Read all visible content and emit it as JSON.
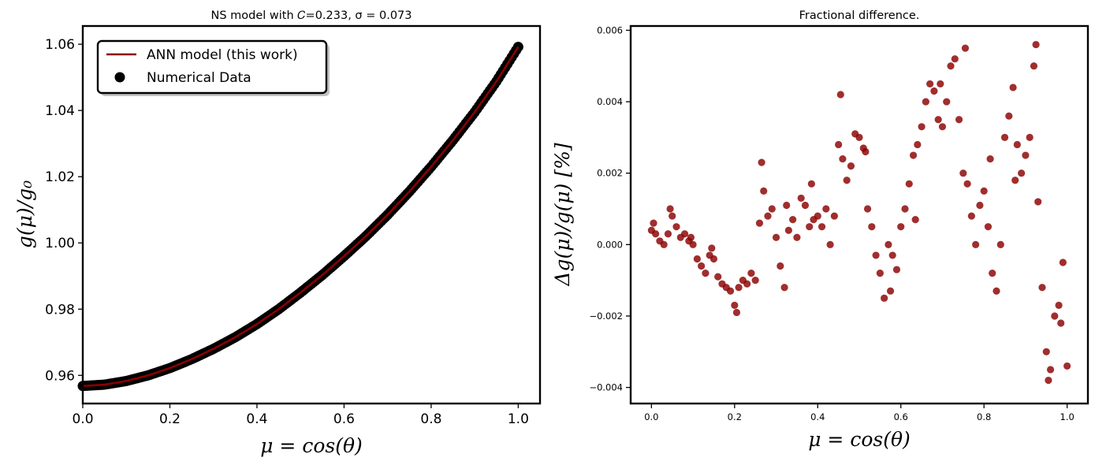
{
  "chart_data": [
    {
      "type": "line",
      "title": "NS model with 𝐶=0.233, σ = 0.073",
      "xlabel": "μ = cos(θ)",
      "ylabel": "g(μ)/g₀",
      "xlim": [
        0.0,
        1.05
      ],
      "ylim": [
        0.9515,
        1.0655
      ],
      "xticks": [
        "0.0",
        "0.2",
        "0.4",
        "0.6",
        "0.8",
        "1.0"
      ],
      "yticks": [
        "0.96",
        "0.98",
        "1.00",
        "1.02",
        "1.04",
        "1.06"
      ],
      "grid": false,
      "legend_position": "upper-left",
      "series": [
        {
          "name": "ANN model (this work)",
          "kind": "line",
          "color": "#8b0000",
          "x": [
            0.0,
            0.05,
            0.1,
            0.15,
            0.2,
            0.25,
            0.3,
            0.35,
            0.4,
            0.45,
            0.5,
            0.55,
            0.6,
            0.65,
            0.7,
            0.75,
            0.8,
            0.85,
            0.9,
            0.95,
            1.0
          ],
          "y": [
            0.9568,
            0.9572,
            0.9583,
            0.96,
            0.9622,
            0.9649,
            0.968,
            0.9715,
            0.9755,
            0.98,
            0.985,
            0.9903,
            0.996,
            1.002,
            1.0085,
            1.0155,
            1.023,
            1.031,
            1.0395,
            1.0488,
            1.0592
          ]
        },
        {
          "name": "Numerical Data",
          "kind": "scatter",
          "color": "#000000",
          "x": [
            0.0,
            0.05,
            0.1,
            0.15,
            0.2,
            0.25,
            0.3,
            0.35,
            0.4,
            0.45,
            0.5,
            0.55,
            0.6,
            0.65,
            0.7,
            0.75,
            0.8,
            0.85,
            0.9,
            0.95,
            1.0
          ],
          "y": [
            0.9568,
            0.9572,
            0.9583,
            0.96,
            0.9622,
            0.9649,
            0.968,
            0.9715,
            0.9755,
            0.98,
            0.985,
            0.9903,
            0.996,
            1.002,
            1.0085,
            1.0155,
            1.023,
            1.031,
            1.0395,
            1.0488,
            1.0592
          ]
        }
      ]
    },
    {
      "type": "scatter",
      "title": "Fractional difference.",
      "xlabel": "μ = cos(θ)",
      "ylabel": "Δg(μ)/g(μ) [%]",
      "xlim": [
        -0.05,
        1.05
      ],
      "ylim": [
        -0.00445,
        0.00612
      ],
      "xticks": [
        "0.0",
        "0.2",
        "0.4",
        "0.6",
        "0.8",
        "1.0"
      ],
      "yticks": [
        "−0.004",
        "−0.002",
        "0.000",
        "0.002",
        "0.004",
        "0.006"
      ],
      "grid": false,
      "series": [
        {
          "color": "#8b0000",
          "x": [
            0.0,
            0.01,
            0.02,
            0.03,
            0.04,
            0.05,
            0.06,
            0.07,
            0.08,
            0.09,
            0.1,
            0.11,
            0.12,
            0.13,
            0.14,
            0.15,
            0.16,
            0.17,
            0.18,
            0.19,
            0.2,
            0.21,
            0.22,
            0.23,
            0.24,
            0.25,
            0.26,
            0.27,
            0.28,
            0.29,
            0.3,
            0.31,
            0.32,
            0.33,
            0.34,
            0.35,
            0.36,
            0.37,
            0.38,
            0.39,
            0.4,
            0.41,
            0.42,
            0.43,
            0.44,
            0.45,
            0.46,
            0.47,
            0.48,
            0.49,
            0.5,
            0.51,
            0.52,
            0.53,
            0.54,
            0.55,
            0.56,
            0.57,
            0.58,
            0.59,
            0.6,
            0.61,
            0.62,
            0.63,
            0.64,
            0.65,
            0.66,
            0.67,
            0.68,
            0.69,
            0.7,
            0.71,
            0.72,
            0.73,
            0.74,
            0.75,
            0.76,
            0.77,
            0.78,
            0.79,
            0.8,
            0.81,
            0.82,
            0.83,
            0.84,
            0.85,
            0.86,
            0.87,
            0.88,
            0.89,
            0.9,
            0.91,
            0.92,
            0.93,
            0.94,
            0.95,
            0.96,
            0.97,
            0.98,
            0.99,
            1.0,
            0.005,
            0.045,
            0.095,
            0.145,
            0.205,
            0.265,
            0.325,
            0.385,
            0.455,
            0.515,
            0.575,
            0.635,
            0.695,
            0.755,
            0.815,
            0.875,
            0.925,
            0.955,
            0.985
          ],
          "y": [
            0.0004,
            0.0003,
            0.0001,
            0.0,
            0.0003,
            0.0008,
            0.0005,
            0.0002,
            0.0003,
            0.0001,
            0.0,
            -0.0004,
            -0.0006,
            -0.0008,
            -0.0003,
            -0.0004,
            -0.0009,
            -0.0011,
            -0.0012,
            -0.0013,
            -0.0017,
            -0.0012,
            -0.001,
            -0.0011,
            -0.0008,
            -0.001,
            0.0006,
            0.0015,
            0.0008,
            0.001,
            0.0002,
            -0.0006,
            -0.0012,
            0.0004,
            0.0007,
            0.0002,
            0.0013,
            0.0011,
            0.0005,
            0.0007,
            0.0008,
            0.0005,
            0.001,
            0.0,
            0.0008,
            0.0028,
            0.0024,
            0.0018,
            0.0022,
            0.0031,
            0.003,
            0.0027,
            0.001,
            0.0005,
            -0.0003,
            -0.0008,
            -0.0015,
            0.0,
            -0.0003,
            -0.0007,
            0.0005,
            0.001,
            0.0017,
            0.0025,
            0.0028,
            0.0033,
            0.004,
            0.0045,
            0.0043,
            0.0035,
            0.0033,
            0.004,
            0.005,
            0.0052,
            0.0035,
            0.002,
            0.0017,
            0.0008,
            0.0,
            0.0011,
            0.0015,
            0.0005,
            -0.0008,
            -0.0013,
            0.0,
            0.003,
            0.0036,
            0.0044,
            0.0028,
            0.002,
            0.0025,
            0.003,
            0.005,
            0.0012,
            -0.0012,
            -0.003,
            -0.0035,
            -0.002,
            -0.0017,
            -0.0005,
            -0.0034,
            0.0006,
            0.001,
            0.0002,
            -0.0001,
            -0.0019,
            0.0023,
            0.0011,
            0.0017,
            0.0042,
            0.0026,
            -0.0013,
            0.0007,
            0.0045,
            0.0055,
            0.0024,
            0.0018,
            0.0056,
            -0.0038,
            -0.0022
          ]
        }
      ]
    }
  ],
  "legend": {
    "line_label": "ANN model (this work)",
    "scatter_label": "Numerical Data"
  }
}
